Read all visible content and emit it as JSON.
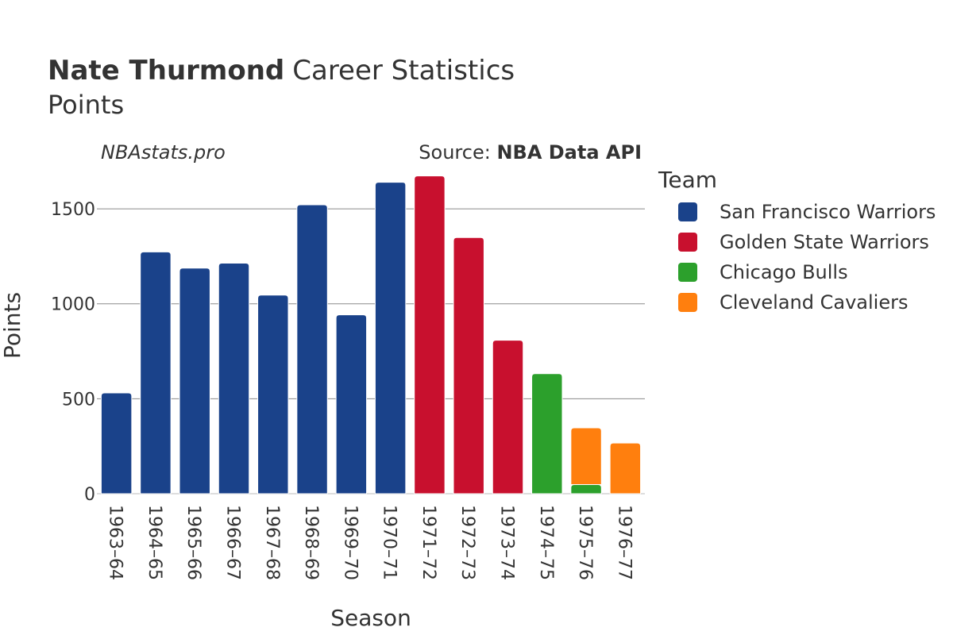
{
  "chart_data": {
    "type": "bar",
    "stacked": true,
    "title_bold": "Nate Thurmond",
    "title_rest": "Career Statistics",
    "subtitle": "Points",
    "credit_left": "NBAstats.pro",
    "credit_right_prefix": "Source: ",
    "credit_right_bold": "NBA Data API",
    "xlabel": "Season",
    "ylabel": "Points",
    "ylim": [
      0,
      1680
    ],
    "yticks": [
      0,
      500,
      1000,
      1500
    ],
    "grid": true,
    "legend_title": "Team",
    "legend_position": "right",
    "categories": [
      "1963–64",
      "1964–65",
      "1965–66",
      "1966–67",
      "1967–68",
      "1968–69",
      "1969–70",
      "1970–71",
      "1971–72",
      "1972–73",
      "1973–74",
      "1974–75",
      "1975–76",
      "1976–77"
    ],
    "series": [
      {
        "name": "San Francisco Warriors",
        "color": "#1a428a",
        "values": [
          531,
          1273,
          1188,
          1214,
          1046,
          1521,
          942,
          1640,
          0,
          0,
          0,
          0,
          0,
          0
        ]
      },
      {
        "name": "Golden State Warriors",
        "color": "#c8102e",
        "values": [
          0,
          0,
          0,
          0,
          0,
          0,
          0,
          0,
          1673,
          1349,
          808,
          0,
          0,
          0
        ]
      },
      {
        "name": "Chicago Bulls",
        "color": "#2ca02c",
        "values": [
          0,
          0,
          0,
          0,
          0,
          0,
          0,
          0,
          0,
          0,
          0,
          632,
          48,
          0
        ]
      },
      {
        "name": "Cleveland Cavaliers",
        "color": "#ff7f0e",
        "values": [
          0,
          0,
          0,
          0,
          0,
          0,
          0,
          0,
          0,
          0,
          0,
          0,
          299,
          267
        ]
      }
    ]
  }
}
